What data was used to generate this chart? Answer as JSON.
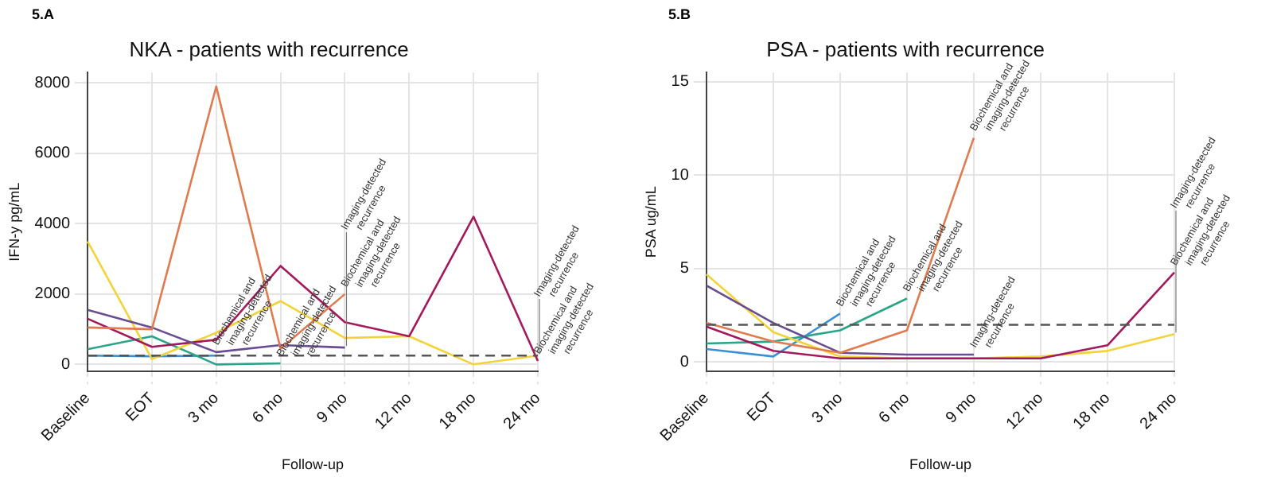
{
  "chart_data": [
    {
      "type": "line",
      "title": "NKA - patients with recurrence",
      "xlabel": "Follow-up",
      "ylabel": "IFN-y pg/mL",
      "categories": [
        "Baseline",
        "EOT",
        "3 mo",
        "6 mo",
        "9 mo",
        "12 mo",
        "18 mo",
        "24 mo"
      ],
      "series": [
        {
          "color": "#e07b50",
          "values": [
            1050,
            1000,
            7900,
            450,
            2000,
            null,
            null,
            null
          ]
        },
        {
          "color": "#6a4c93",
          "values": [
            1550,
            1050,
            350,
            550,
            480,
            null,
            null,
            null
          ]
        },
        {
          "color": "#a3195b",
          "values": [
            1300,
            500,
            700,
            2800,
            1200,
            800,
            4200,
            100
          ]
        },
        {
          "color": "#f2d33a",
          "values": [
            3500,
            150,
            900,
            1800,
            750,
            800,
            0,
            250
          ]
        },
        {
          "color": "#2aa58a",
          "values": [
            430,
            800,
            0,
            30,
            null,
            null,
            null,
            null
          ]
        },
        {
          "color": "#3b8fd6",
          "values": [
            250,
            230,
            250,
            null,
            null,
            null,
            null,
            null
          ]
        }
      ],
      "ylim": [
        -200,
        8300
      ],
      "yticks": [
        0,
        2000,
        4000,
        6000,
        8000
      ],
      "grid": true,
      "legend": false,
      "marker": "none",
      "line_style": "solid",
      "ref_lines": [
        {
          "axis": "y",
          "value": 250,
          "color": "#555555",
          "line_style": "dashed"
        }
      ],
      "annotations": [
        "5.A",
        {
          "text": "Biochemical and imaging-detected recurrence",
          "x": "3 mo",
          "y": 350
        },
        {
          "text": "Biochemical and imaging-detected recurrence",
          "x": "6 mo",
          "y": 30
        },
        {
          "text": "Biochemical and imaging-detected recurrence",
          "x": "9 mo",
          "y": 2000
        },
        {
          "text": "Imaging-detected recurrence",
          "x": "9 mo",
          "y": 480
        },
        {
          "text": "Biochemical and imaging-detected recurrence",
          "x": "24 mo",
          "y": 100
        },
        {
          "text": "Imaging-detected recurrence",
          "x": "24 mo",
          "y": 250
        }
      ]
    },
    {
      "type": "line",
      "title": "PSA - patients with recurrence",
      "xlabel": "Follow-up",
      "ylabel": "PSA ug/mL",
      "categories": [
        "Baseline",
        "EOT",
        "3 mo",
        "6 mo",
        "9 mo",
        "12 mo",
        "18 mo",
        "24 mo"
      ],
      "series": [
        {
          "color": "#e07b50",
          "values": [
            2.1,
            1.1,
            0.5,
            1.7,
            12,
            null,
            null,
            null
          ]
        },
        {
          "color": "#6a4c93",
          "values": [
            4.1,
            2.1,
            0.5,
            0.4,
            0.4,
            null,
            null,
            null
          ]
        },
        {
          "color": "#a3195b",
          "values": [
            1.9,
            0.6,
            0.2,
            0.2,
            0.2,
            0.2,
            0.9,
            4.8
          ]
        },
        {
          "color": "#f2d33a",
          "values": [
            4.7,
            1.6,
            0.3,
            0.2,
            0.2,
            0.3,
            0.6,
            1.5
          ]
        },
        {
          "color": "#2aa58a",
          "values": [
            1.0,
            1.1,
            1.7,
            3.4,
            null,
            null,
            null,
            null
          ]
        },
        {
          "color": "#3b8fd6",
          "values": [
            0.7,
            0.3,
            2.6,
            null,
            null,
            null,
            null,
            null
          ]
        }
      ],
      "ylim": [
        -0.5,
        15.5
      ],
      "yticks": [
        0,
        5,
        10,
        15
      ],
      "grid": true,
      "legend": false,
      "marker": "none",
      "line_style": "solid",
      "ref_lines": [
        {
          "axis": "y",
          "value": 2,
          "color": "#555555",
          "line_style": "dashed"
        }
      ],
      "annotations": [
        "5.B",
        {
          "text": "Biochemical and imaging-detected recurrence",
          "x": "3 mo",
          "y": 2.6
        },
        {
          "text": "Biochemical and imaging-detected recurrence",
          "x": "6 mo",
          "y": 3.4
        },
        {
          "text": "Biochemical and imaging-detected recurrence",
          "x": "9 mo",
          "y": 12
        },
        {
          "text": "Imaging-detected recurrence",
          "x": "9 mo",
          "y": 0.4
        },
        {
          "text": "Biochemical and imaging-detected recurrence",
          "x": "24 mo",
          "y": 4.8
        },
        {
          "text": "Imaging-detected recurrence",
          "x": "24 mo",
          "y": 1.5
        }
      ]
    }
  ]
}
